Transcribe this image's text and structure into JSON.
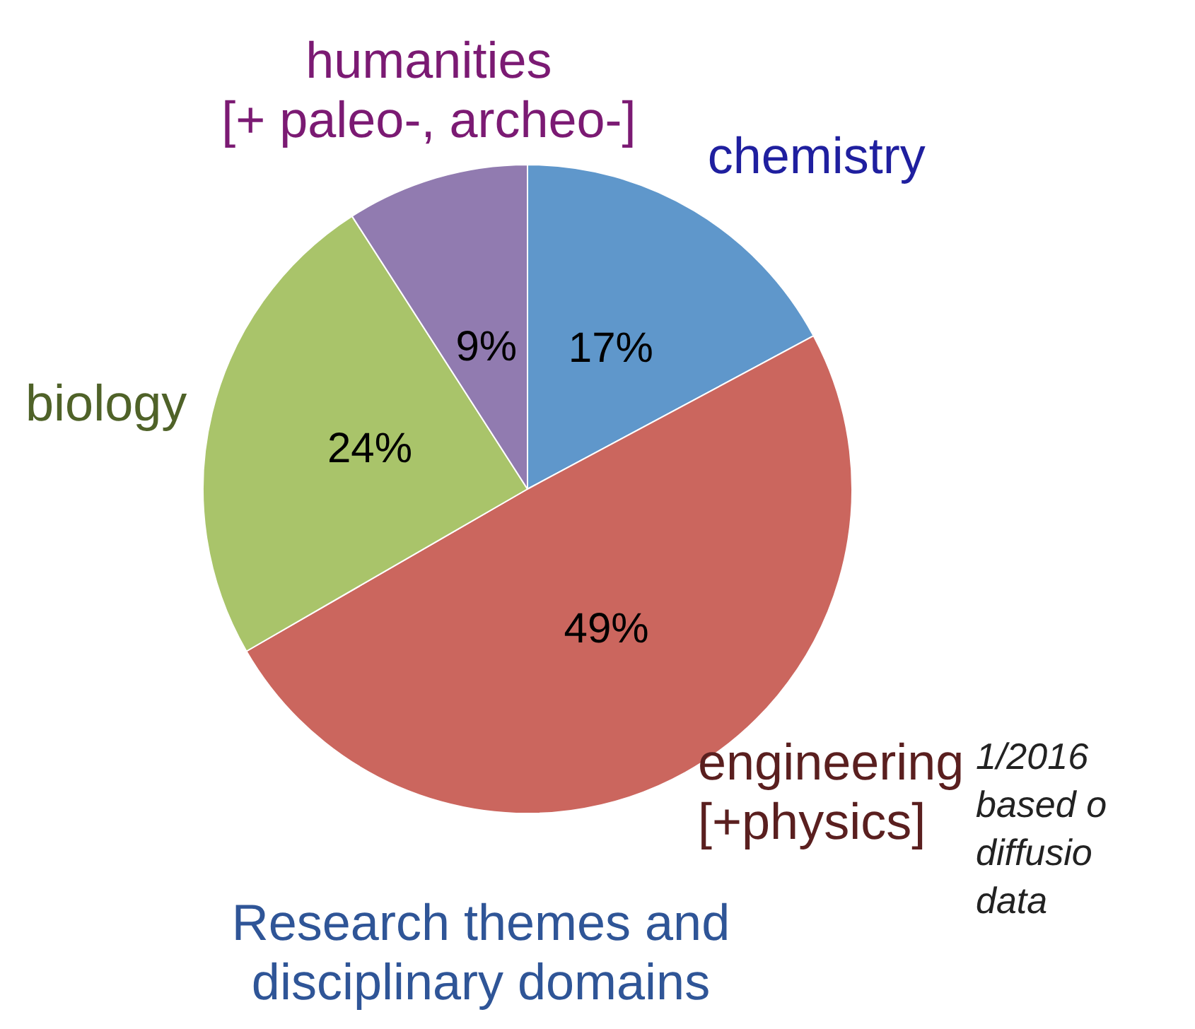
{
  "chart_data": {
    "type": "pie",
    "title": "Research themes and disciplinary domains",
    "categories": [
      "chemistry",
      "engineering\n[+physics]",
      "biology",
      "humanities\n[+ paleo-, archeo-]"
    ],
    "values": [
      17,
      49,
      24,
      9
    ],
    "colors": [
      "#5f97cb",
      "#cb665e",
      "#a9c46a",
      "#917bb0"
    ],
    "value_labels": [
      "17%",
      "49%",
      "24%",
      "9%"
    ],
    "legend": false,
    "annotations": [
      "1/2016\nbased o\ndiffusio\ndata"
    ]
  }
}
